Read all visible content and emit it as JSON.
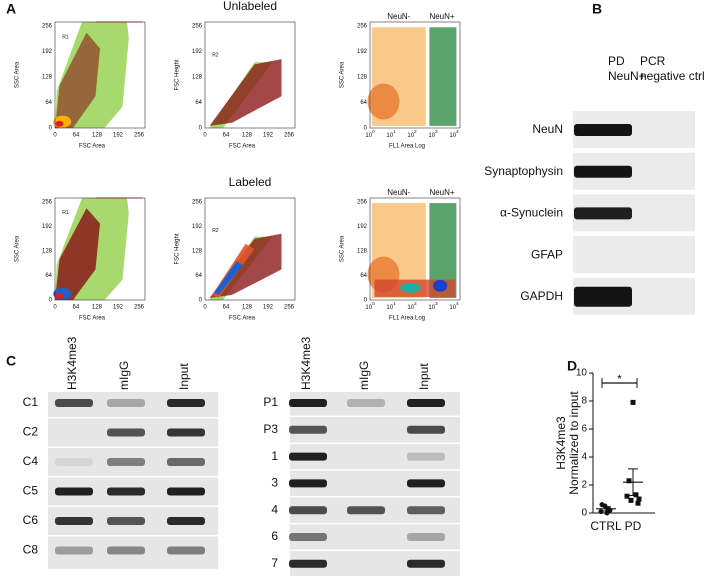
{
  "panel_a": {
    "label": "A",
    "rows": [
      {
        "title": "Unlabeled",
        "plots": [
          {
            "gate": "R1",
            "y_label": "SSC Area",
            "x_label": "FSC Area",
            "yticks": [
              0,
              64,
              128,
              192,
              256
            ],
            "xticks": [
              0,
              64,
              128,
              192,
              256
            ]
          },
          {
            "gate": "R2",
            "y_label": "FSC Height",
            "x_label": "FSC Area",
            "yticks": [
              0,
              64,
              128,
              192,
              256
            ],
            "xticks": [
              0,
              64,
              128,
              192,
              256
            ]
          },
          {
            "gates": [
              "NeuN-",
              "NeuN+"
            ],
            "y_label": "SSC Area",
            "x_label": "FL1 Area Log",
            "yticks": [
              0,
              64,
              128,
              192,
              256
            ],
            "xticks": [
              {
                "base": "10",
                "exp": "0"
              },
              {
                "base": "10",
                "exp": "1"
              },
              {
                "base": "10",
                "exp": "2"
              },
              {
                "base": "10",
                "exp": "3"
              },
              {
                "base": "10",
                "exp": "4"
              }
            ]
          }
        ]
      },
      {
        "title": "Labeled",
        "plots": [
          {
            "gate": "R1",
            "y_label": "SSC Area",
            "x_label": "FSC Area",
            "yticks": [
              0,
              64,
              128,
              192,
              256
            ],
            "xticks": [
              0,
              64,
              128,
              192,
              256
            ]
          },
          {
            "gate": "R2",
            "y_label": "FSC Height",
            "x_label": "FSC Area",
            "yticks": [
              0,
              64,
              128,
              192,
              256
            ],
            "xticks": [
              0,
              64,
              128,
              192,
              256
            ]
          },
          {
            "gates": [
              "NeuN-",
              "NeuN+"
            ],
            "y_label": "SSC Area",
            "x_label": "FL1 Area Log",
            "yticks": [
              0,
              64,
              128,
              192,
              256
            ],
            "xticks": [
              {
                "base": "10",
                "exp": "0"
              },
              {
                "base": "10",
                "exp": "1"
              },
              {
                "base": "10",
                "exp": "2"
              },
              {
                "base": "10",
                "exp": "3"
              },
              {
                "base": "10",
                "exp": "4"
              }
            ]
          }
        ]
      }
    ]
  },
  "panel_b": {
    "label": "B",
    "columns": [
      [
        "PD",
        "NeuN+"
      ],
      [
        "PCR",
        "negative ctrl"
      ]
    ],
    "rows": [
      "NeuN",
      "Synaptophysin",
      "α-Synuclein",
      "GFAP",
      "GAPDH"
    ]
  },
  "panel_c": {
    "label": "C",
    "gels": [
      {
        "columns": [
          "H3K4me3",
          "mIgG",
          "Input"
        ],
        "rows": [
          "C1",
          "C2",
          "C4",
          "C5",
          "C6",
          "C8"
        ]
      },
      {
        "columns": [
          "H3K4me3",
          "mIgG",
          "Input"
        ],
        "rows": [
          "P1",
          "P3",
          "1",
          "3",
          "4",
          "6",
          "7"
        ]
      }
    ]
  },
  "chart_data": {
    "type": "dot",
    "panel_label": "D",
    "y_label": [
      "H3K4me3",
      "Normalized to input"
    ],
    "categories": [
      "CTRL",
      "PD"
    ],
    "values": [
      [
        0.6,
        0.3,
        0.5,
        0.2,
        0.1,
        0.0
      ],
      [
        7.9,
        2.3,
        1.3,
        1.2,
        1.0,
        0.9,
        0.7
      ]
    ],
    "means": [
      0.3,
      2.2
    ],
    "errors": [
      0.15,
      0.95
    ],
    "markers": [
      "circle",
      "square"
    ],
    "ylim": [
      0,
      10
    ],
    "yticks": [
      0,
      2,
      4,
      6,
      8,
      10
    ],
    "annotation": "*",
    "color": "#111111"
  }
}
